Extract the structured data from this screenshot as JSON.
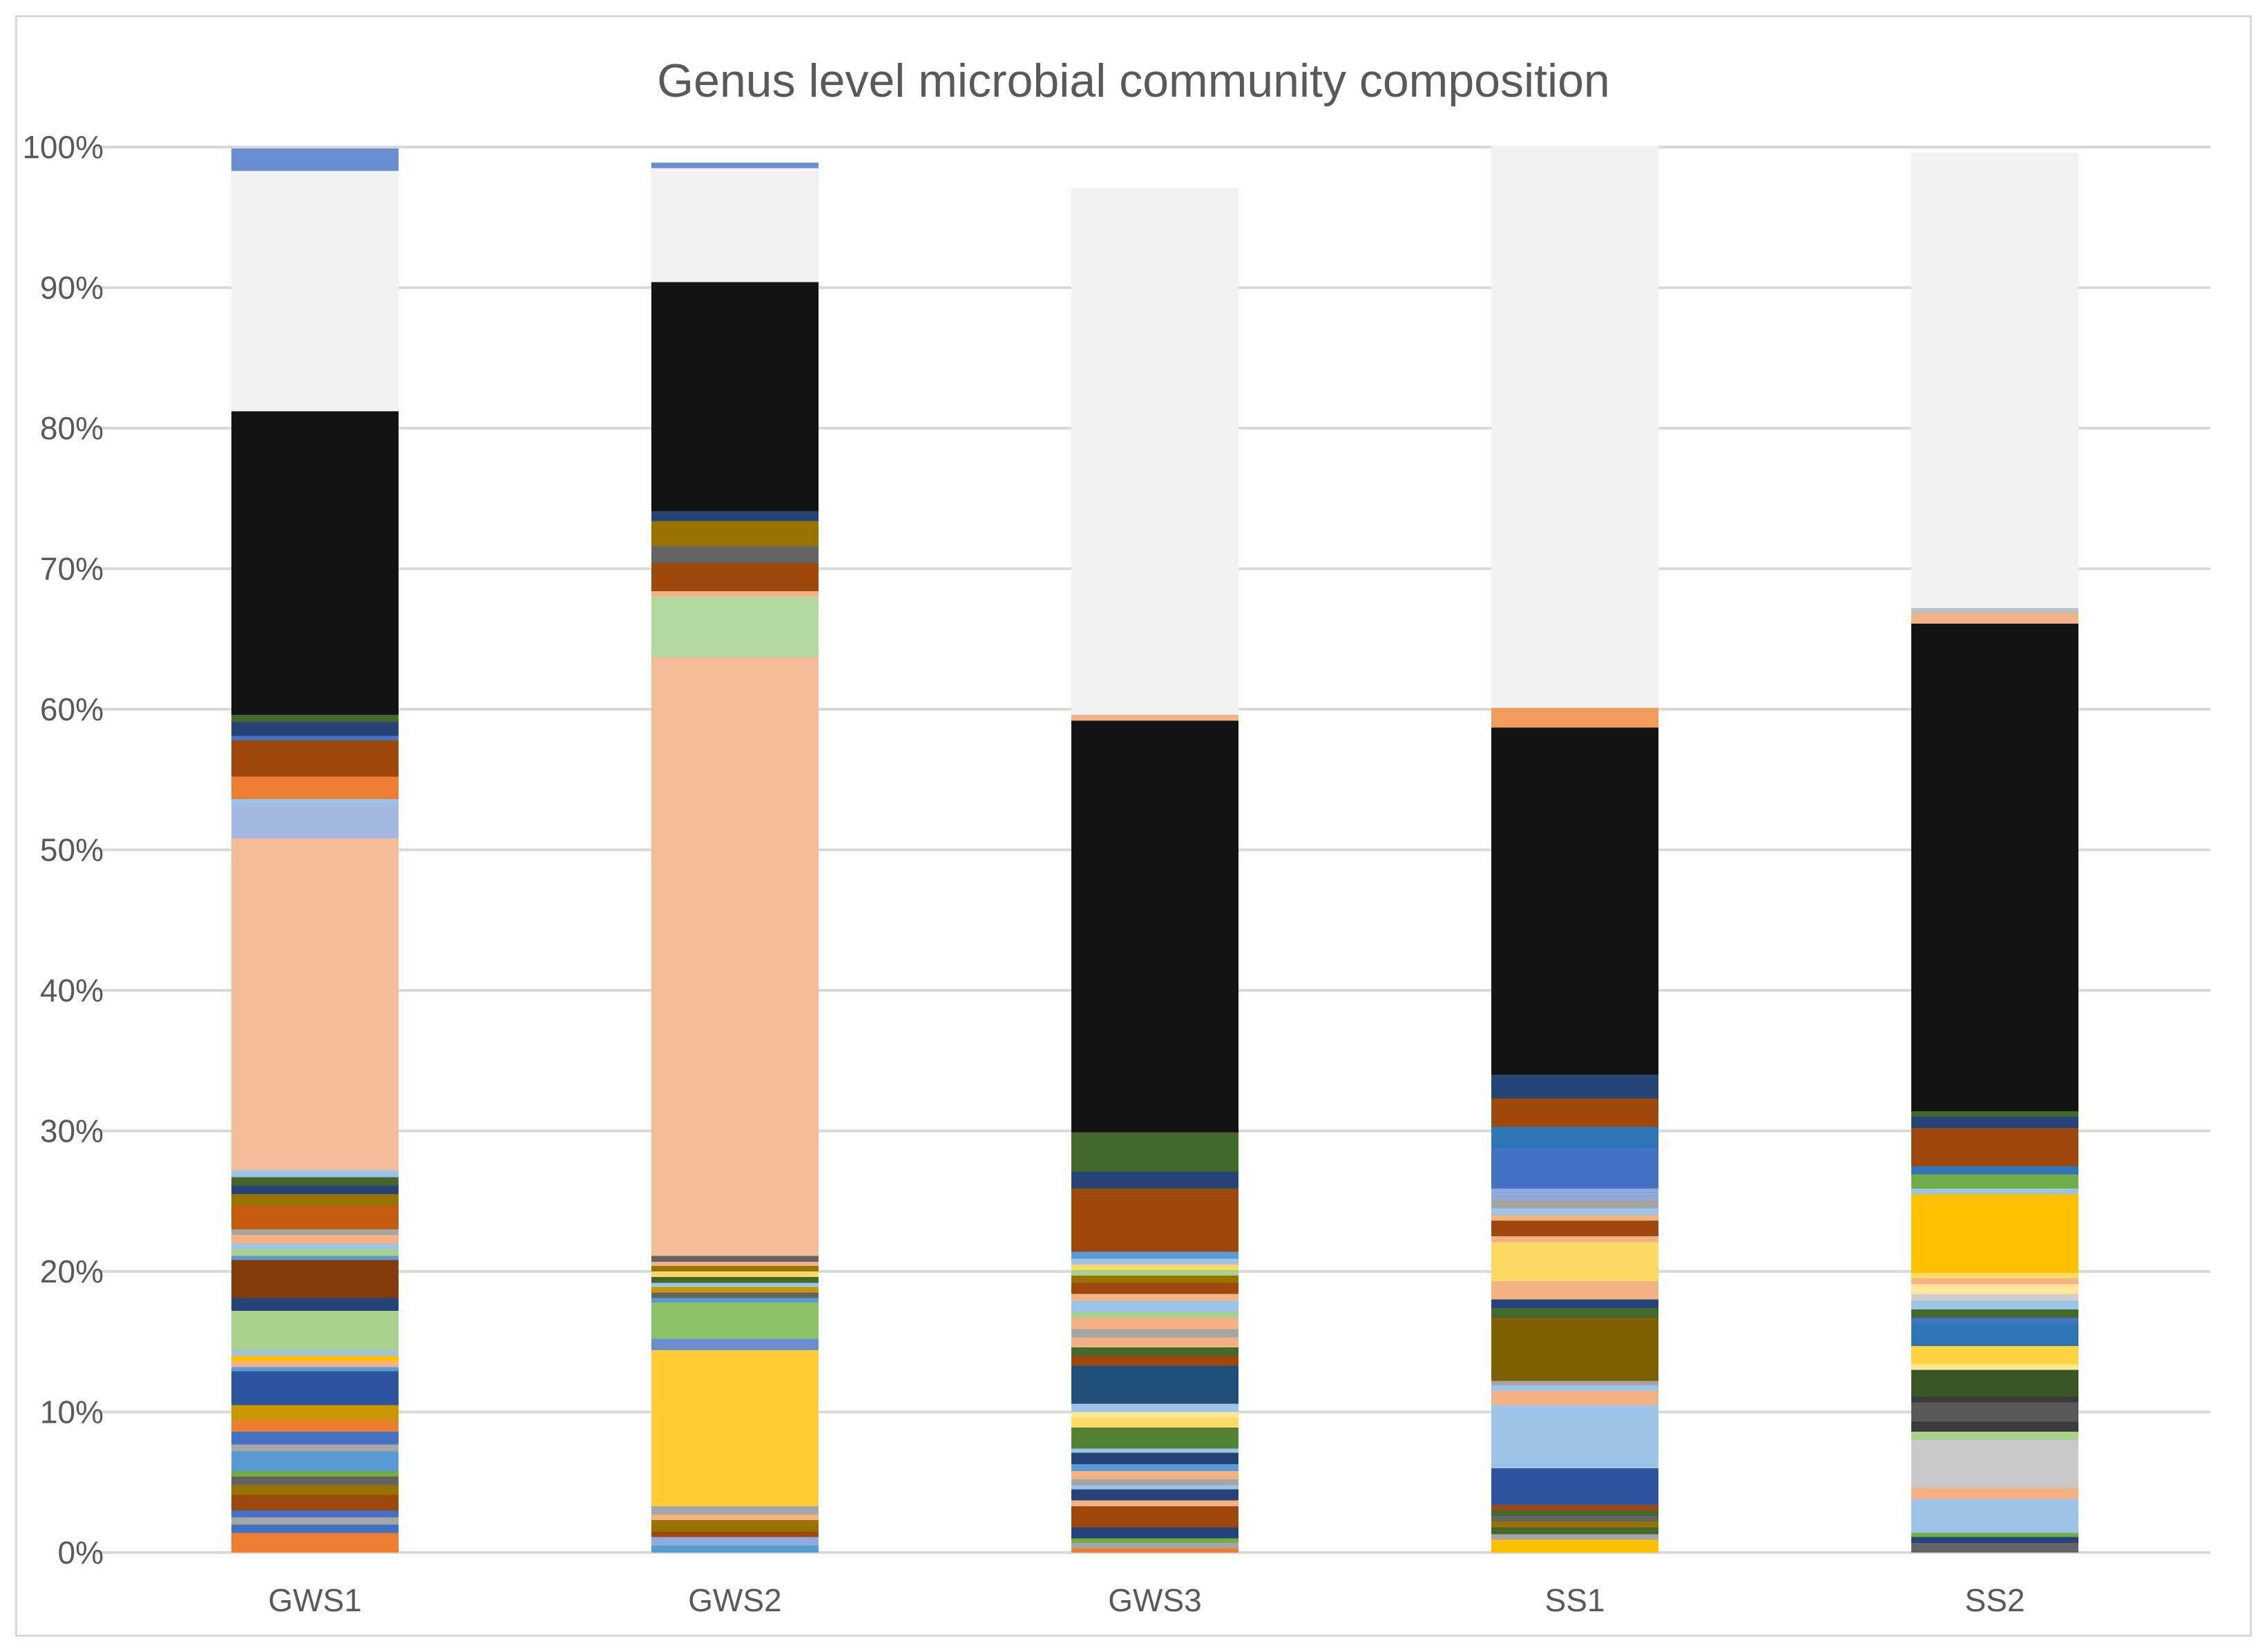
{
  "chart_data": {
    "type": "bar",
    "stacked": true,
    "normalized": true,
    "title": "Genus level microbial community composition",
    "xlabel": "",
    "ylabel": "",
    "ylim": [
      0,
      100
    ],
    "y_ticks": [
      "0%",
      "10%",
      "20%",
      "30%",
      "40%",
      "50%",
      "60%",
      "70%",
      "80%",
      "90%",
      "100%"
    ],
    "categories": [
      "GWS1",
      "GWS2",
      "GWS3",
      "SS1",
      "SS2"
    ],
    "grid": true,
    "legend": "none",
    "bars": [
      {
        "label": "GWS1",
        "segments": [
          {
            "color": "#ed7d31",
            "value": 1.4
          },
          {
            "color": "#4472c4",
            "value": 0.6
          },
          {
            "color": "#a5a5a5",
            "value": 0.5
          },
          {
            "color": "#4472c4",
            "value": 0.5
          },
          {
            "color": "#9e480e",
            "value": 1.1
          },
          {
            "color": "#997300",
            "value": 0.7
          },
          {
            "color": "#636363",
            "value": 0.6
          },
          {
            "color": "#70ad47",
            "value": 0.4
          },
          {
            "color": "#5b9bd5",
            "value": 1.4
          },
          {
            "color": "#a5a5a5",
            "value": 0.5
          },
          {
            "color": "#4472c4",
            "value": 0.9
          },
          {
            "color": "#ed7d31",
            "value": 0.8
          },
          {
            "color": "#c99700",
            "value": 1.1
          },
          {
            "color": "#2f55a0",
            "value": 2.4
          },
          {
            "color": "#5b9bd5",
            "value": 0.3
          },
          {
            "color": "#f4b183",
            "value": 0.4
          },
          {
            "color": "#ffc000",
            "value": 0.4
          },
          {
            "color": "#9dc3e6",
            "value": 0.4
          },
          {
            "color": "#a9d18e",
            "value": 2.8
          },
          {
            "color": "#264478",
            "value": 0.9
          },
          {
            "color": "#843c0c",
            "value": 2.7
          },
          {
            "color": "#5b9bd5",
            "value": 0.3
          },
          {
            "color": "#a9d18e",
            "value": 0.5
          },
          {
            "color": "#9dc3e6",
            "value": 0.4
          },
          {
            "color": "#f4b183",
            "value": 0.6
          },
          {
            "color": "#a5a5a5",
            "value": 0.4
          },
          {
            "color": "#c55a11",
            "value": 1.7
          },
          {
            "color": "#997300",
            "value": 0.8
          },
          {
            "color": "#264478",
            "value": 0.6
          },
          {
            "color": "#43682b",
            "value": 0.6
          },
          {
            "color": "#9dc3e6",
            "value": 0.5
          },
          {
            "color": "#f4bc98",
            "value": 23.6
          },
          {
            "color": "#a4b9e2",
            "value": 2.4
          },
          {
            "color": "#9dc3e6",
            "value": 0.4
          },
          {
            "color": "#ed7d31",
            "value": 1.6
          },
          {
            "color": "#9e480e",
            "value": 2.6
          },
          {
            "color": "#4472c4",
            "value": 0.3
          },
          {
            "color": "#264478",
            "value": 1.0
          },
          {
            "color": "#43682b",
            "value": 0.5
          },
          {
            "color": "#141414",
            "value": 21.6
          },
          {
            "color": "#f2f2f2",
            "value": 17.1
          },
          {
            "color": "#6a8ed0",
            "value": 1.6
          }
        ]
      },
      {
        "label": "GWS2",
        "segments": [
          {
            "color": "#5b9bd5",
            "value": 0.5
          },
          {
            "color": "#8faadc",
            "value": 0.6
          },
          {
            "color": "#9e480e",
            "value": 0.4
          },
          {
            "color": "#997300",
            "value": 0.8
          },
          {
            "color": "#f4b183",
            "value": 0.4
          },
          {
            "color": "#a5a5a5",
            "value": 0.6
          },
          {
            "color": "#ffcc33",
            "value": 11.1
          },
          {
            "color": "#6a8ed0",
            "value": 0.8
          },
          {
            "color": "#8cc168",
            "value": 2.6
          },
          {
            "color": "#5b9bd5",
            "value": 0.3
          },
          {
            "color": "#636363",
            "value": 0.4
          },
          {
            "color": "#c99700",
            "value": 0.4
          },
          {
            "color": "#9dc3e6",
            "value": 0.3
          },
          {
            "color": "#43682b",
            "value": 0.4
          },
          {
            "color": "#ffd966",
            "value": 0.4
          },
          {
            "color": "#997300",
            "value": 0.4
          },
          {
            "color": "#f4b183",
            "value": 0.3
          },
          {
            "color": "#636363",
            "value": 0.4
          },
          {
            "color": "#f4bc98",
            "value": 42.6
          },
          {
            "color": "#b3d9a0",
            "value": 4.3
          },
          {
            "color": "#f4b183",
            "value": 0.4
          },
          {
            "color": "#9e480e",
            "value": 2.0
          },
          {
            "color": "#636363",
            "value": 1.2
          },
          {
            "color": "#997300",
            "value": 1.8
          },
          {
            "color": "#264478",
            "value": 0.7
          },
          {
            "color": "#141414",
            "value": 16.3
          },
          {
            "color": "#f2f2f2",
            "value": 8.1
          },
          {
            "color": "#6a8ed0",
            "value": 0.4
          }
        ]
      },
      {
        "label": "GWS3",
        "segments": [
          {
            "color": "#ed7d31",
            "value": 0.3
          },
          {
            "color": "#a5a5a5",
            "value": 0.4
          },
          {
            "color": "#70ad47",
            "value": 0.3
          },
          {
            "color": "#264478",
            "value": 0.8
          },
          {
            "color": "#9e480e",
            "value": 1.5
          },
          {
            "color": "#f4b183",
            "value": 0.4
          },
          {
            "color": "#264478",
            "value": 0.8
          },
          {
            "color": "#9dc3e6",
            "value": 0.3
          },
          {
            "color": "#a5a5a5",
            "value": 0.4
          },
          {
            "color": "#f4b183",
            "value": 0.6
          },
          {
            "color": "#5b9bd5",
            "value": 0.5
          },
          {
            "color": "#264478",
            "value": 0.8
          },
          {
            "color": "#9dc3e6",
            "value": 0.3
          },
          {
            "color": "#548235",
            "value": 1.5
          },
          {
            "color": "#ffd966",
            "value": 0.7
          },
          {
            "color": "#ffe699",
            "value": 0.4
          },
          {
            "color": "#9dc3e6",
            "value": 0.6
          },
          {
            "color": "#1f4e79",
            "value": 2.7
          },
          {
            "color": "#9e480e",
            "value": 0.7
          },
          {
            "color": "#43682b",
            "value": 0.6
          },
          {
            "color": "#f4b183",
            "value": 0.7
          },
          {
            "color": "#a5a5a5",
            "value": 0.6
          },
          {
            "color": "#f4b183",
            "value": 0.8
          },
          {
            "color": "#a9d18e",
            "value": 0.4
          },
          {
            "color": "#9dc3e6",
            "value": 0.8
          },
          {
            "color": "#f4b183",
            "value": 0.5
          },
          {
            "color": "#9e480e",
            "value": 0.8
          },
          {
            "color": "#997300",
            "value": 0.5
          },
          {
            "color": "#a9d18e",
            "value": 0.4
          },
          {
            "color": "#ffd966",
            "value": 0.4
          },
          {
            "color": "#9dc3e6",
            "value": 0.4
          },
          {
            "color": "#5b9bd5",
            "value": 0.5
          },
          {
            "color": "#9e480e",
            "value": 4.5
          },
          {
            "color": "#264478",
            "value": 1.2
          },
          {
            "color": "#43682b",
            "value": 2.8
          },
          {
            "color": "#141414",
            "value": 29.3
          },
          {
            "color": "#f4b183",
            "value": 0.4
          },
          {
            "color": "#f2f2f2",
            "value": 37.5
          }
        ]
      },
      {
        "label": "SS1",
        "segments": [
          {
            "color": "#ffc000",
            "value": 0.9
          },
          {
            "color": "#a5a5a5",
            "value": 0.4
          },
          {
            "color": "#43682b",
            "value": 0.5
          },
          {
            "color": "#997300",
            "value": 0.4
          },
          {
            "color": "#636363",
            "value": 0.4
          },
          {
            "color": "#43682b",
            "value": 0.4
          },
          {
            "color": "#9e480e",
            "value": 0.4
          },
          {
            "color": "#2f55a0",
            "value": 2.6
          },
          {
            "color": "#9dc3e6",
            "value": 4.5
          },
          {
            "color": "#f4b183",
            "value": 1.0
          },
          {
            "color": "#9dc3e6",
            "value": 0.4
          },
          {
            "color": "#a5a5a5",
            "value": 0.3
          },
          {
            "color": "#7f6000",
            "value": 4.5
          },
          {
            "color": "#43682b",
            "value": 0.7
          },
          {
            "color": "#264478",
            "value": 0.6
          },
          {
            "color": "#f4b183",
            "value": 1.3
          },
          {
            "color": "#ffd966",
            "value": 2.8
          },
          {
            "color": "#f4b183",
            "value": 0.4
          },
          {
            "color": "#9e480e",
            "value": 1.1
          },
          {
            "color": "#f4b183",
            "value": 0.4
          },
          {
            "color": "#9dc3e6",
            "value": 0.5
          },
          {
            "color": "#a5a5a5",
            "value": 0.6
          },
          {
            "color": "#8faadc",
            "value": 0.8
          },
          {
            "color": "#4472c4",
            "value": 2.9
          },
          {
            "color": "#2e75b6",
            "value": 1.5
          },
          {
            "color": "#9e480e",
            "value": 2.0
          },
          {
            "color": "#264478",
            "value": 1.7
          },
          {
            "color": "#141414",
            "value": 24.7
          },
          {
            "color": "#f29b5c",
            "value": 1.4
          },
          {
            "color": "#f2f2f2",
            "value": 40.0
          }
        ]
      },
      {
        "label": "SS2",
        "segments": [
          {
            "color": "#636363",
            "value": 0.7
          },
          {
            "color": "#264478",
            "value": 0.4
          },
          {
            "color": "#70ad47",
            "value": 0.3
          },
          {
            "color": "#9dc3e6",
            "value": 2.4
          },
          {
            "color": "#f4b183",
            "value": 0.8
          },
          {
            "color": "#c9c9c9",
            "value": 3.4
          },
          {
            "color": "#a9d18e",
            "value": 0.6
          },
          {
            "color": "#3a3a3a",
            "value": 0.7
          },
          {
            "color": "#595959",
            "value": 1.4
          },
          {
            "color": "#3a3a3a",
            "value": 0.4
          },
          {
            "color": "#375623",
            "value": 1.9
          },
          {
            "color": "#ffe699",
            "value": 0.4
          },
          {
            "color": "#ffd23f",
            "value": 1.3
          },
          {
            "color": "#2e75b6",
            "value": 1.6
          },
          {
            "color": "#4472c4",
            "value": 0.4
          },
          {
            "color": "#43682b",
            "value": 0.6
          },
          {
            "color": "#9dc3e6",
            "value": 0.6
          },
          {
            "color": "#d0cece",
            "value": 0.5
          },
          {
            "color": "#ffe699",
            "value": 0.7
          },
          {
            "color": "#f4b183",
            "value": 0.4
          },
          {
            "color": "#ffd966",
            "value": 0.4
          },
          {
            "color": "#ffc000",
            "value": 5.6
          },
          {
            "color": "#9dc3e6",
            "value": 0.4
          },
          {
            "color": "#70ad47",
            "value": 1.0
          },
          {
            "color": "#2e75b6",
            "value": 0.6
          },
          {
            "color": "#9e480e",
            "value": 2.7
          },
          {
            "color": "#264478",
            "value": 0.8
          },
          {
            "color": "#43682b",
            "value": 0.4
          },
          {
            "color": "#141414",
            "value": 34.7
          },
          {
            "color": "#f4b183",
            "value": 0.7
          },
          {
            "color": "#bfbfbf",
            "value": 0.4
          },
          {
            "color": "#f2f2f2",
            "value": 32.4
          }
        ]
      }
    ]
  }
}
